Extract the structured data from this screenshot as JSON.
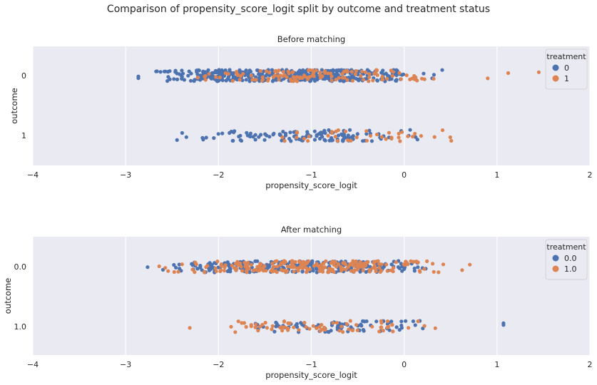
{
  "suptitle": "Comparison of propensity_score_logit split by outcome and treatment status",
  "colors": {
    "treatment_0": "#4c72b0",
    "treatment_1": "#dd8452",
    "panel_bg": "#eaeaf2",
    "grid": "#ffffff"
  },
  "chart_data": [
    {
      "type": "scatter",
      "subtype": "strip",
      "title": "Before matching",
      "xlabel": "propensity_score_logit",
      "ylabel": "outcome",
      "xlim": [
        -4,
        2
      ],
      "xticks": [
        "−4",
        "−3",
        "−2",
        "−1",
        "0",
        "1",
        "2"
      ],
      "categories": [
        "0",
        "1"
      ],
      "legend": {
        "title": "treatment",
        "placement": "top-right",
        "entries": [
          "0",
          "1"
        ]
      },
      "grid": true,
      "series": [
        {
          "name": "0",
          "category": "0",
          "x_range": [
            -3.1,
            0.6
          ],
          "count": 420,
          "outliers": []
        },
        {
          "name": "1",
          "category": "0",
          "x_range": [
            -2.6,
            0.75
          ],
          "count": 130,
          "outliers": [
            0.9,
            1.12,
            1.45
          ]
        },
        {
          "name": "0",
          "category": "1",
          "x_range": [
            -2.85,
            0.55
          ],
          "count": 120,
          "outliers": []
        },
        {
          "name": "1",
          "category": "1",
          "x_range": [
            -1.8,
            0.75
          ],
          "count": 40,
          "outliers": []
        }
      ]
    },
    {
      "type": "scatter",
      "subtype": "strip",
      "title": "After matching",
      "xlabel": "propensity_score_logit",
      "ylabel": "outcome",
      "xlim": [
        -4,
        2
      ],
      "xticks": [
        "−4",
        "−3",
        "−2",
        "−1",
        "0",
        "1",
        "2"
      ],
      "categories": [
        "0.0",
        "1.0"
      ],
      "legend": {
        "title": "treatment",
        "placement": "top-right",
        "entries": [
          "0.0",
          "1.0"
        ]
      },
      "grid": true,
      "series": [
        {
          "name": "0.0",
          "category": "0.0",
          "x_range": [
            -2.95,
            0.7
          ],
          "count": 260,
          "outliers": []
        },
        {
          "name": "1.0",
          "category": "0.0",
          "x_range": [
            -2.85,
            0.85
          ],
          "count": 230,
          "outliers": []
        },
        {
          "name": "0.0",
          "category": "1.0",
          "x_range": [
            -2.0,
            0.6
          ],
          "count": 80,
          "outliers": [
            1.07,
            1.07
          ]
        },
        {
          "name": "1.0",
          "category": "1.0",
          "x_range": [
            -2.45,
            0.6
          ],
          "count": 70,
          "outliers": []
        }
      ]
    }
  ]
}
